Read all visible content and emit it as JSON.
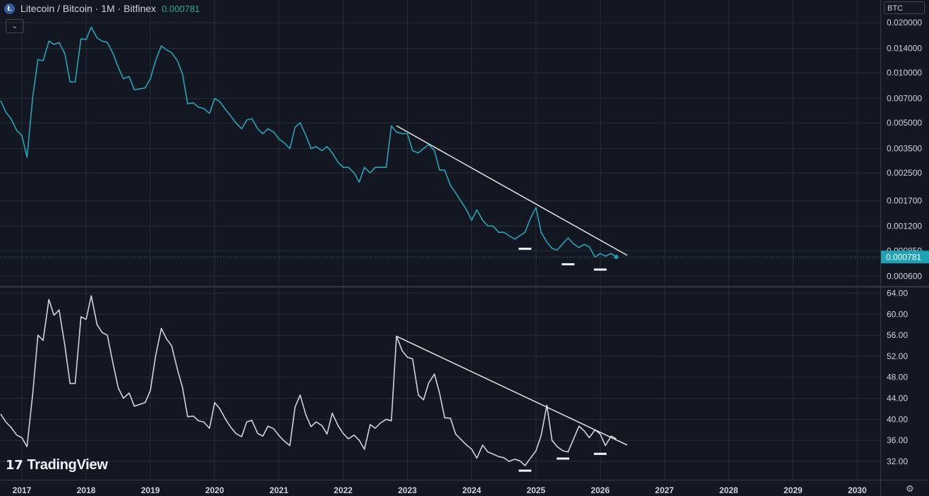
{
  "header": {
    "coin_letter": "Ł",
    "symbol_title": "Litecoin / Bitcoin · 1M · Bitfinex",
    "last_price": "0.000781",
    "collapse_icon": "chevron-down-icon"
  },
  "currency_label": "BTC",
  "logo_text": "TradingView",
  "settings_icon": "gear-icon",
  "colors": {
    "background": "#131722",
    "price_line": "#26a4b6",
    "osc_line": "#d1d4dc",
    "trendline": "#e6e6e6",
    "grid": "#2a2e39",
    "price_tag": "#1fa2b5"
  },
  "chart_data": [
    {
      "type": "line",
      "title": "Litecoin / Bitcoin · 1M · Bitfinex",
      "yscale": "log",
      "x_tick_labels": [
        "2017",
        "2018",
        "2019",
        "2020",
        "2021",
        "2022",
        "2023",
        "2024",
        "2025",
        "2026",
        "2027",
        "2028",
        "2029",
        "2030"
      ],
      "y_tick_labels": [
        "0.020000",
        "0.014000",
        "0.010000",
        "0.007000",
        "0.005000",
        "0.003500",
        "0.002500",
        "0.001700",
        "0.001200",
        "0.000850",
        "0.000600"
      ],
      "ylim": [
        0.000525,
        0.0225
      ],
      "last_value_label": "0.000781",
      "series": [
        {
          "x": [
            2016.67,
            2016.75,
            2016.83,
            2016.92,
            2017.0,
            2017.08,
            2017.17,
            2017.25,
            2017.33,
            2017.42,
            2017.5,
            2017.58,
            2017.67,
            2017.75,
            2017.83,
            2017.92,
            2018.0,
            2018.08,
            2018.17,
            2018.25,
            2018.33,
            2018.42,
            2018.5,
            2018.58,
            2018.67,
            2018.75,
            2018.83,
            2018.92,
            2019.0,
            2019.08,
            2019.17,
            2019.25,
            2019.33,
            2019.42,
            2019.5,
            2019.58,
            2019.67,
            2019.75,
            2019.83,
            2019.92,
            2020.0,
            2020.08,
            2020.17,
            2020.25,
            2020.33,
            2020.42,
            2020.5,
            2020.58,
            2020.67,
            2020.75,
            2020.83,
            2020.92,
            2021.0,
            2021.08,
            2021.17,
            2021.25,
            2021.33,
            2021.42,
            2021.5,
            2021.58,
            2021.67,
            2021.75,
            2021.83,
            2021.92,
            2022.0,
            2022.08,
            2022.17,
            2022.25,
            2022.33,
            2022.42,
            2022.5,
            2022.58,
            2022.67,
            2022.75,
            2022.83,
            2022.92,
            2023.0,
            2023.08,
            2023.17,
            2023.25,
            2023.33,
            2023.42,
            2023.5,
            2023.58,
            2023.67,
            2023.75,
            2023.83,
            2023.92,
            2024.0,
            2024.08,
            2024.17,
            2024.25,
            2024.33,
            2024.42,
            2024.5,
            2024.58,
            2024.67,
            2024.75,
            2024.83,
            2024.92,
            2025.0,
            2025.08,
            2025.17,
            2025.25,
            2025.33,
            2025.42,
            2025.5,
            2025.58,
            2025.67,
            2025.75,
            2025.83,
            2025.92,
            2026.0,
            2026.08,
            2026.17,
            2026.25
          ],
          "values": [
            0.0068,
            0.0058,
            0.0053,
            0.0045,
            0.0042,
            0.0031,
            0.0072,
            0.012,
            0.0118,
            0.0155,
            0.0148,
            0.0152,
            0.013,
            0.0088,
            0.0088,
            0.016,
            0.0158,
            0.0188,
            0.0162,
            0.0155,
            0.0152,
            0.013,
            0.0108,
            0.0092,
            0.0095,
            0.0079,
            0.008,
            0.0081,
            0.0092,
            0.0118,
            0.0145,
            0.0137,
            0.0132,
            0.0118,
            0.0098,
            0.0065,
            0.0066,
            0.0062,
            0.0061,
            0.0057,
            0.007,
            0.0067,
            0.006,
            0.0055,
            0.005,
            0.0046,
            0.0052,
            0.0053,
            0.0046,
            0.0043,
            0.0046,
            0.0044,
            0.004,
            0.0038,
            0.0035,
            0.0047,
            0.005,
            0.0042,
            0.0035,
            0.0036,
            0.0034,
            0.0036,
            0.0033,
            0.0029,
            0.0027,
            0.0027,
            0.0025,
            0.0022,
            0.0027,
            0.0025,
            0.0027,
            0.0027,
            0.0027,
            0.0048,
            0.0044,
            0.0043,
            0.0043,
            0.0034,
            0.0033,
            0.0035,
            0.0037,
            0.0034,
            0.0026,
            0.0026,
            0.0021,
            0.0019,
            0.0017,
            0.0015,
            0.0013,
            0.0015,
            0.0013,
            0.0012,
            0.0012,
            0.0011,
            0.0011,
            0.00105,
            0.001,
            0.00105,
            0.0011,
            0.00135,
            0.00155,
            0.0011,
            0.00096,
            0.00088,
            0.00086,
            0.00094,
            0.00102,
            0.00094,
            0.00089,
            0.00093,
            0.0009,
            0.00078,
            0.00082,
            0.00079,
            0.00082,
            0.000781
          ]
        }
      ],
      "annotations": [
        {
          "type": "trendline",
          "x": [
            2022.83,
            2026.42
          ],
          "y": [
            0.0048,
            0.0008
          ]
        }
      ]
    },
    {
      "type": "line",
      "y_tick_labels": [
        "64.00",
        "60.00",
        "56.00",
        "52.00",
        "48.00",
        "44.00",
        "40.00",
        "36.00",
        "32.00"
      ],
      "ylim": [
        28.5,
        65.0
      ],
      "series": [
        {
          "x": [
            2016.67,
            2016.75,
            2016.83,
            2016.92,
            2017.0,
            2017.08,
            2017.17,
            2017.25,
            2017.33,
            2017.42,
            2017.5,
            2017.58,
            2017.67,
            2017.75,
            2017.83,
            2017.92,
            2018.0,
            2018.08,
            2018.17,
            2018.25,
            2018.33,
            2018.42,
            2018.5,
            2018.58,
            2018.67,
            2018.75,
            2018.83,
            2018.92,
            2019.0,
            2019.08,
            2019.17,
            2019.25,
            2019.33,
            2019.42,
            2019.5,
            2019.58,
            2019.67,
            2019.75,
            2019.83,
            2019.92,
            2020.0,
            2020.08,
            2020.17,
            2020.25,
            2020.33,
            2020.42,
            2020.5,
            2020.58,
            2020.67,
            2020.75,
            2020.83,
            2020.92,
            2021.0,
            2021.08,
            2021.17,
            2021.25,
            2021.33,
            2021.42,
            2021.5,
            2021.58,
            2021.67,
            2021.75,
            2021.83,
            2021.92,
            2022.0,
            2022.08,
            2022.17,
            2022.25,
            2022.33,
            2022.42,
            2022.5,
            2022.58,
            2022.67,
            2022.75,
            2022.83,
            2022.92,
            2023.0,
            2023.08,
            2023.17,
            2023.25,
            2023.33,
            2023.42,
            2023.5,
            2023.58,
            2023.67,
            2023.75,
            2023.83,
            2023.92,
            2024.0,
            2024.08,
            2024.17,
            2024.25,
            2024.33,
            2024.42,
            2024.5,
            2024.58,
            2024.67,
            2024.75,
            2024.83,
            2024.92,
            2025.0,
            2025.08,
            2025.17,
            2025.25,
            2025.33,
            2025.42,
            2025.5,
            2025.58,
            2025.67,
            2025.75,
            2025.83,
            2025.92,
            2026.0,
            2026.08,
            2026.17,
            2026.25
          ],
          "values": [
            41.0,
            39.5,
            38.5,
            37.0,
            36.5,
            34.8,
            45.0,
            56.0,
            55.0,
            62.8,
            59.8,
            60.8,
            54.0,
            46.8,
            46.8,
            59.5,
            59.0,
            63.5,
            58.0,
            56.5,
            56.0,
            50.5,
            46.0,
            44.0,
            45.0,
            42.5,
            42.8,
            43.2,
            45.5,
            52.0,
            57.3,
            55.3,
            54.0,
            49.5,
            46.0,
            40.5,
            40.6,
            39.7,
            39.5,
            38.3,
            43.2,
            42.0,
            40.0,
            38.5,
            37.3,
            36.7,
            39.5,
            39.8,
            37.3,
            36.8,
            38.7,
            38.2,
            36.9,
            35.9,
            35.0,
            42.3,
            44.6,
            40.8,
            38.6,
            39.5,
            38.8,
            37.2,
            41.2,
            38.8,
            37.3,
            36.3,
            37.0,
            36.0,
            34.3,
            39.0,
            38.3,
            39.3,
            40.0,
            39.7,
            55.8,
            53.0,
            51.8,
            51.5,
            44.6,
            43.7,
            46.9,
            48.6,
            45.0,
            40.3,
            40.2,
            37.2,
            36.2,
            35.1,
            34.3,
            32.6,
            35.1,
            33.8,
            33.4,
            32.9,
            32.7,
            32.0,
            32.4,
            32.1,
            31.2,
            32.7,
            34.0,
            36.9,
            42.7,
            36.0,
            34.8,
            34.0,
            33.8,
            36.1,
            38.7,
            37.8,
            36.5,
            38.0,
            37.2,
            35.0,
            36.8,
            36.3
          ]
        }
      ],
      "annotations": [
        {
          "type": "trendline",
          "x": [
            2022.83,
            2026.42
          ],
          "y": [
            55.8,
            35.1
          ]
        }
      ]
    }
  ]
}
